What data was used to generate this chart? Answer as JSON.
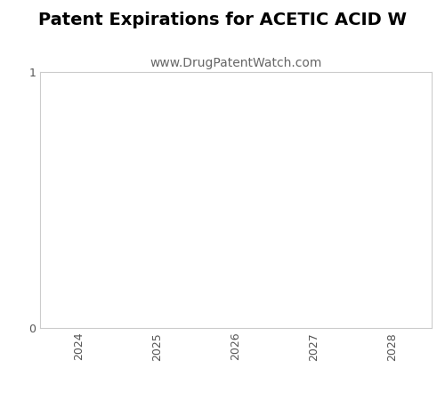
{
  "title": "Patent Expirations for ACETIC ACID W",
  "subtitle": "www.DrugPatentWatch.com",
  "title_fontsize": 14,
  "subtitle_fontsize": 10,
  "title_fontweight": "bold",
  "xlim": [
    2023.5,
    2028.5
  ],
  "ylim": [
    0,
    1
  ],
  "xticks": [
    2024,
    2025,
    2026,
    2027,
    2028
  ],
  "yticks": [
    0,
    1
  ],
  "background_color": "#ffffff",
  "axes_facecolor": "#ffffff",
  "spine_color": "#cccccc",
  "tick_label_color": "#555555",
  "title_color": "#000000",
  "subtitle_color": "#666666"
}
